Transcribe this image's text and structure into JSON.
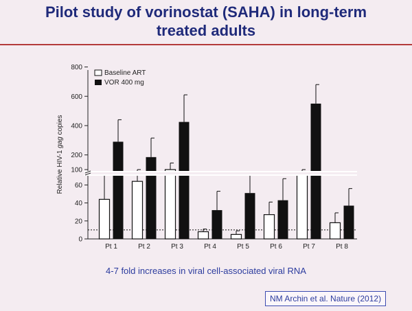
{
  "slide": {
    "title_line1": "Pilot study of vorinostat (SAHA) in long-term",
    "title_line2": "treated adults",
    "note": "4-7 fold increases in viral cell-associated viral  RNA",
    "citation": "NM Archin et al. Nature (2012)"
  },
  "colors": {
    "title": "#1f2a7a",
    "rule": "#b33a3a",
    "note": "#2b3b9e",
    "bar_vor": "#111111",
    "bar_baseline": "#ffffff"
  },
  "chart_data": {
    "type": "bar",
    "categories": [
      "Pt 1",
      "Pt 2",
      "Pt 3",
      "Pt 4",
      "Pt 5",
      "Pt 6",
      "Pt 7",
      "Pt 8"
    ],
    "ylabel_pre": "Relative HIV-1 ",
    "ylabel_italic": "gag",
    "ylabel_post": " copies",
    "axis_break": "broken y-axis between 70 and 100",
    "yticks_lower": [
      0,
      20,
      40,
      60
    ],
    "yticks_upper": [
      100,
      200,
      400,
      600,
      800
    ],
    "reference_line": 10,
    "legend_position": "top-left",
    "series": [
      {
        "name": "Baseline ART",
        "style": "white",
        "values": [
          44,
          64,
          100,
          8,
          5,
          27,
          78,
          18
        ],
        "errors": [
          73,
          100,
          145,
          11,
          9,
          41,
          100,
          29
        ]
      },
      {
        "name": "VOR 400 mg",
        "style": "black",
        "values": [
          290,
          185,
          425,
          32,
          51,
          43,
          550,
          37
        ],
        "errors": [
          440,
          315,
          610,
          53,
          78,
          67,
          680,
          56
        ]
      }
    ],
    "grid": false
  }
}
